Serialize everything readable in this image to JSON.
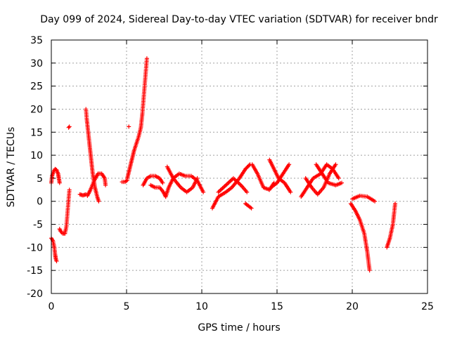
{
  "chart_data": {
    "type": "scatter",
    "title": "Day 099 of 2024, Sidereal Day-to-day VTEC variation (SDTVAR) for receiver bndr",
    "xlabel": "GPS time / hours",
    "ylabel": "SDTVAR / TECUs",
    "xlim": [
      0,
      25
    ],
    "ylim": [
      -20,
      35
    ],
    "xticks": [
      0,
      5,
      10,
      15,
      20,
      25
    ],
    "yticks": [
      -20,
      -15,
      -10,
      -5,
      0,
      5,
      10,
      15,
      20,
      25,
      30,
      35
    ],
    "grid": true,
    "marker": "+",
    "color": "#ff0000",
    "segments": [
      {
        "x": [
          0.0,
          0.1,
          0.2,
          0.25,
          0.3,
          0.35
        ],
        "y": [
          -8,
          -8.5,
          -10,
          -11.5,
          -12.5,
          -13
        ]
      },
      {
        "x": [
          0.0,
          0.05,
          0.15,
          0.25,
          0.35,
          0.45,
          0.5,
          0.55
        ],
        "y": [
          4,
          5.5,
          6.5,
          7,
          6.8,
          6,
          5,
          4
        ]
      },
      {
        "x": [
          0.55,
          0.62,
          0.75,
          0.9
        ],
        "y": [
          -6,
          -6.5,
          -7,
          -7
        ]
      },
      {
        "x": [
          0.9,
          1.0,
          1.05,
          1.1,
          1.15,
          1.2
        ],
        "y": [
          -7,
          -5.5,
          -3.5,
          -1.5,
          0.5,
          2.5
        ]
      },
      {
        "x": [
          1.15,
          1.2
        ],
        "y": [
          16,
          16.2
        ]
      },
      {
        "x": [
          1.9,
          2.1,
          2.3
        ],
        "y": [
          1.5,
          1.3,
          1.5
        ]
      },
      {
        "x": [
          2.3,
          2.35,
          2.45,
          2.55,
          2.65,
          2.75,
          2.9,
          3.05,
          3.15
        ],
        "y": [
          20,
          18,
          15,
          12,
          9,
          6,
          3,
          1,
          0
        ]
      },
      {
        "x": [
          2.4,
          2.6,
          2.85,
          3.1,
          3.35,
          3.55,
          3.6
        ],
        "y": [
          1.2,
          2.5,
          4.5,
          6,
          6,
          5,
          3.5
        ]
      },
      {
        "x": [
          4.7,
          4.9,
          5.05
        ],
        "y": [
          4.2,
          4.2,
          4.6
        ]
      },
      {
        "x": [
          5.05,
          5.2,
          5.35,
          5.5,
          5.65,
          5.8,
          5.95,
          6.05,
          6.15,
          6.25,
          6.35
        ],
        "y": [
          5,
          7,
          9,
          11,
          12.5,
          14,
          16,
          19,
          23,
          27,
          31
        ]
      },
      {
        "x": [
          5.15
        ],
        "y": [
          16.2
        ]
      },
      {
        "x": [
          6.1,
          6.35,
          6.6,
          6.9,
          7.2,
          7.4
        ],
        "y": [
          3.5,
          5,
          5.5,
          5.5,
          5,
          4
        ]
      },
      {
        "x": [
          6.6,
          6.9,
          7.2,
          7.45,
          7.6
        ],
        "y": [
          3.5,
          3,
          3,
          2,
          1
        ]
      },
      {
        "x": [
          7.6,
          7.8,
          8.1,
          8.5,
          8.9,
          9.3,
          9.7,
          10.1
        ],
        "y": [
          1,
          3,
          5,
          6,
          5.5,
          5.5,
          4.5,
          2
        ]
      },
      {
        "x": [
          7.7,
          8.1,
          8.6,
          9.0,
          9.4,
          9.7
        ],
        "y": [
          7.5,
          5,
          3,
          2,
          3,
          5
        ]
      },
      {
        "x": [
          10.7,
          11.1,
          11.6,
          12.0,
          12.5,
          12.9,
          13.2
        ],
        "y": [
          -1.5,
          1,
          2,
          3,
          5,
          7,
          8
        ]
      },
      {
        "x": [
          11.1,
          11.6,
          12.1,
          12.6,
          13.0
        ],
        "y": [
          2,
          3.5,
          5,
          3.5,
          2
        ]
      },
      {
        "x": [
          12.9,
          13.1,
          13.3
        ],
        "y": [
          -0.5,
          -1,
          -1.5
        ]
      },
      {
        "x": [
          13.35,
          13.7,
          14.1,
          14.5,
          14.8
        ],
        "y": [
          8,
          6,
          3,
          2.5,
          4
        ]
      },
      {
        "x": [
          14.5,
          14.8,
          15.1,
          15.5,
          15.9
        ],
        "y": [
          9,
          7,
          5,
          4,
          2
        ]
      },
      {
        "x": [
          14.6,
          15.0,
          15.4,
          15.8
        ],
        "y": [
          3,
          4,
          6,
          8
        ]
      },
      {
        "x": [
          16.6,
          17.0,
          17.4,
          17.9,
          18.3,
          18.7,
          19.1
        ],
        "y": [
          1,
          3,
          5,
          6,
          8,
          7,
          5
        ]
      },
      {
        "x": [
          16.9,
          17.3,
          17.7,
          18.1,
          18.5,
          18.9
        ],
        "y": [
          5,
          3,
          1.5,
          3,
          6,
          8
        ]
      },
      {
        "x": [
          17.6,
          18.0,
          18.4,
          18.9,
          19.3
        ],
        "y": [
          8,
          6,
          4,
          3.5,
          4
        ]
      },
      {
        "x": [
          19.9,
          20.2,
          20.5,
          20.8,
          21.0,
          21.15
        ],
        "y": [
          -0.5,
          -2,
          -4,
          -7,
          -11,
          -15
        ]
      },
      {
        "x": [
          20.0,
          20.5,
          21.0,
          21.5
        ],
        "y": [
          0.5,
          1.2,
          1,
          0
        ]
      },
      {
        "x": [
          22.3,
          22.5,
          22.7,
          22.85
        ],
        "y": [
          -10,
          -8,
          -5,
          -0.5
        ]
      }
    ]
  }
}
